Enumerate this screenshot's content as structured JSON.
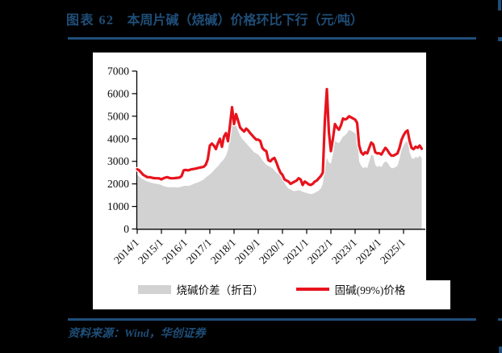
{
  "page": {
    "background_color": "#000000",
    "accent_color": "#1f4e79"
  },
  "title": {
    "prefix": "图表 62",
    "text": "本周片碱（烧碱）价格环比下行（元/吨）"
  },
  "source": {
    "label": "资料来源：Wind，华创证券"
  },
  "chart_data": {
    "type": "area",
    "title": "",
    "xlabel": "",
    "ylabel": "",
    "unit": "元/吨",
    "ylim": [
      0,
      7000
    ],
    "yticks": [
      0,
      1000,
      2000,
      3000,
      4000,
      5000,
      6000,
      7000
    ],
    "xticks": [
      "2014/1",
      "2015/1",
      "2016/1",
      "2017/1",
      "2018/1",
      "2019/1",
      "2020/1",
      "2021/1",
      "2022/1",
      "2023/1",
      "2024/1",
      "2025/1"
    ],
    "x_start": "2014/1",
    "x_end": "2025/10",
    "x_frequency": "monthly",
    "grid": false,
    "legend_position": "bottom",
    "series": [
      {
        "name": "烧碱价差（折百）",
        "type": "area",
        "color": "#d2d2d2",
        "values": [
          2400,
          2330,
          2250,
          2200,
          2150,
          2100,
          2080,
          2050,
          2030,
          2010,
          2000,
          1980,
          1950,
          1900,
          1880,
          1860,
          1850,
          1850,
          1860,
          1850,
          1840,
          1850,
          1880,
          1900,
          1920,
          1900,
          1930,
          1960,
          2000,
          2030,
          2060,
          2100,
          2150,
          2200,
          2280,
          2350,
          2420,
          2500,
          2600,
          2700,
          2780,
          2900,
          3000,
          3100,
          3250,
          3500,
          4100,
          4850,
          4700,
          4600,
          4350,
          4150,
          4000,
          3900,
          3800,
          3700,
          3600,
          3500,
          3400,
          3350,
          3300,
          3200,
          3050,
          2950,
          2850,
          2800,
          2750,
          2700,
          2600,
          2500,
          2450,
          2400,
          2300,
          2050,
          1900,
          1800,
          1750,
          1700,
          1680,
          1700,
          1720,
          1700,
          1650,
          1620,
          1600,
          1570,
          1550,
          1560,
          1600,
          1650,
          1700,
          1800,
          2000,
          2700,
          3150,
          2950,
          2900,
          3300,
          3900,
          3850,
          3800,
          3950,
          4100,
          4150,
          4250,
          4400,
          4350,
          4300,
          4250,
          4150,
          3000,
          2800,
          2700,
          2750,
          2700,
          3000,
          3300,
          3250,
          2850,
          2750,
          2800,
          2750,
          2900,
          3000,
          2950,
          2800,
          2700,
          2700,
          2750,
          2800,
          3100,
          3500,
          3700,
          3850,
          3900,
          3400,
          3150,
          3100,
          3200,
          3150,
          3250,
          3150
        ]
      },
      {
        "name": "固碱(99%)价格",
        "type": "line",
        "color": "#e8131d",
        "values": [
          2650,
          2600,
          2500,
          2400,
          2350,
          2300,
          2300,
          2280,
          2260,
          2250,
          2250,
          2240,
          2200,
          2250,
          2280,
          2300,
          2260,
          2250,
          2250,
          2260,
          2270,
          2280,
          2350,
          2600,
          2620,
          2600,
          2620,
          2650,
          2660,
          2680,
          2700,
          2720,
          2740,
          2760,
          2850,
          3100,
          3700,
          3790,
          3700,
          3540,
          3800,
          4000,
          3640,
          4100,
          4250,
          3890,
          4600,
          5400,
          4650,
          5090,
          4800,
          4500,
          4400,
          4320,
          4450,
          4370,
          4250,
          4150,
          4050,
          3960,
          3960,
          3900,
          3600,
          3500,
          3450,
          3050,
          3000,
          3100,
          3150,
          2950,
          2700,
          2500,
          2400,
          2200,
          2150,
          2100,
          2000,
          2050,
          2100,
          2150,
          2250,
          2200,
          1950,
          2100,
          2050,
          1980,
          1950,
          2000,
          2100,
          2150,
          2250,
          2350,
          2500,
          4800,
          6200,
          4300,
          3450,
          4000,
          4650,
          4500,
          4400,
          4600,
          4900,
          4850,
          4900,
          5000,
          4950,
          4900,
          4850,
          4700,
          3700,
          3400,
          3300,
          3400,
          3350,
          3600,
          3830,
          3750,
          3400,
          3350,
          3360,
          3300,
          3450,
          3600,
          3500,
          3350,
          3250,
          3250,
          3300,
          3350,
          3600,
          3950,
          4150,
          4300,
          4370,
          3900,
          3600,
          3540,
          3650,
          3600,
          3700,
          3560
        ]
      }
    ]
  }
}
